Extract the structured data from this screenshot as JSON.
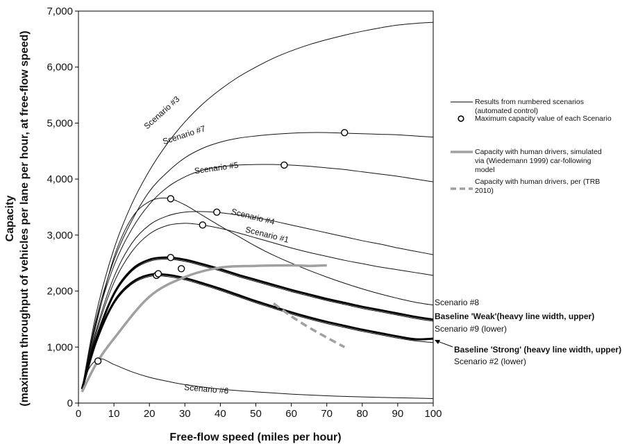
{
  "chart_data": {
    "type": "line",
    "xlabel": "Free-flow speed (miles per hour)",
    "ylabel_line1": "Capacity",
    "ylabel_line2": "(maximum throughput of vehicles per lane per hour, at free-flow speed)",
    "xlim": [
      0,
      100
    ],
    "ylim": [
      0,
      7000
    ],
    "x_ticks": [
      0,
      10,
      20,
      30,
      40,
      50,
      60,
      70,
      80,
      90,
      100
    ],
    "y_ticks": [
      0,
      1000,
      2000,
      3000,
      4000,
      5000,
      6000,
      7000
    ],
    "y_tick_labels": [
      "0",
      "1,000",
      "2,000",
      "3,000",
      "4,000",
      "5,000",
      "6,000",
      "7,000"
    ],
    "grid": false,
    "legend_position": "right",
    "series": [
      {
        "key": "s3",
        "style": "thin",
        "label": "Scenario #3",
        "label_x": 24,
        "label_y": 5150,
        "label_angle": -42,
        "x": [
          1,
          5,
          10,
          15,
          20,
          25,
          30,
          35,
          40,
          45,
          50,
          55,
          60,
          65,
          70,
          75,
          80,
          85,
          90,
          95,
          100
        ],
        "y": [
          250,
          1600,
          2750,
          3550,
          4150,
          4630,
          5020,
          5340,
          5600,
          5820,
          6000,
          6160,
          6290,
          6400,
          6490,
          6570,
          6640,
          6700,
          6750,
          6780,
          6800
        ]
      },
      {
        "key": "s7",
        "style": "thin",
        "label": "Scenario #7",
        "label_x": 30,
        "label_y": 4740,
        "label_angle": -18,
        "x": [
          1,
          5,
          10,
          15,
          20,
          25,
          30,
          35,
          40,
          45,
          50,
          55,
          60,
          65,
          70,
          75,
          80,
          85,
          90,
          95,
          100
        ],
        "y": [
          250,
          1500,
          2550,
          3250,
          3780,
          4120,
          4380,
          4550,
          4660,
          4730,
          4770,
          4800,
          4820,
          4830,
          4830,
          4820,
          4810,
          4800,
          4790,
          4770,
          4750
        ]
      },
      {
        "key": "s5",
        "style": "thin",
        "label": "Scenario #5",
        "label_x": 39,
        "label_y": 4150,
        "label_angle": -8,
        "x": [
          1,
          5,
          10,
          15,
          20,
          25,
          30,
          35,
          40,
          45,
          50,
          55,
          60,
          65,
          70,
          75,
          80,
          85,
          90,
          95,
          100
        ],
        "y": [
          250,
          1450,
          2450,
          3100,
          3550,
          3850,
          4040,
          4160,
          4220,
          4250,
          4260,
          4260,
          4250,
          4230,
          4200,
          4170,
          4130,
          4090,
          4050,
          4000,
          3950
        ]
      },
      {
        "key": "s4",
        "style": "thin",
        "label": "Scenario #4",
        "label_x": 49,
        "label_y": 3280,
        "label_angle": 14,
        "x": [
          1,
          5,
          10,
          15,
          20,
          25,
          30,
          35,
          40,
          45,
          50,
          55,
          60,
          65,
          70,
          75,
          80,
          85,
          90,
          95,
          100
        ],
        "y": [
          250,
          1300,
          2250,
          2850,
          3180,
          3340,
          3410,
          3420,
          3400,
          3360,
          3310,
          3250,
          3180,
          3110,
          3040,
          2970,
          2900,
          2840,
          2770,
          2710,
          2650
        ]
      },
      {
        "key": "s1",
        "style": "thin",
        "label": "Scenario #1",
        "label_x": 53,
        "label_y": 2960,
        "label_angle": 14,
        "x": [
          1,
          5,
          10,
          15,
          20,
          25,
          30,
          35,
          40,
          45,
          50,
          55,
          60,
          65,
          70,
          75,
          80,
          85,
          90,
          95,
          100
        ],
        "y": [
          250,
          1250,
          2150,
          2700,
          3020,
          3170,
          3210,
          3180,
          3120,
          3040,
          2950,
          2860,
          2770,
          2690,
          2620,
          2550,
          2490,
          2430,
          2380,
          2330,
          2280
        ]
      },
      {
        "key": "s8",
        "style": "thin",
        "label": "",
        "label_x": 0,
        "label_y": 0,
        "label_angle": 0,
        "x": [
          1,
          5,
          10,
          15,
          20,
          25,
          30,
          35,
          40,
          45,
          50,
          55,
          60,
          65,
          70,
          75,
          80,
          85,
          90,
          95,
          100
        ],
        "y": [
          250,
          1400,
          2600,
          3300,
          3600,
          3660,
          3540,
          3350,
          3160,
          2980,
          2800,
          2640,
          2500,
          2370,
          2250,
          2140,
          2040,
          1950,
          1870,
          1800,
          1750
        ]
      },
      {
        "key": "weak",
        "style": "heavy",
        "label": "",
        "label_x": 0,
        "label_y": 0,
        "label_angle": 0,
        "x": [
          1,
          5,
          10,
          15,
          20,
          25,
          30,
          35,
          40,
          45,
          50,
          55,
          60,
          65,
          70,
          75,
          80,
          85,
          90,
          95,
          100
        ],
        "y": [
          250,
          1150,
          1950,
          2380,
          2560,
          2600,
          2560,
          2480,
          2390,
          2290,
          2200,
          2110,
          2020,
          1940,
          1860,
          1790,
          1720,
          1660,
          1600,
          1540,
          1490
        ]
      },
      {
        "key": "s9",
        "style": "thin",
        "label": "",
        "label_x": 0,
        "label_y": 0,
        "label_angle": 0,
        "x": [
          1,
          5,
          10,
          15,
          20,
          25,
          30,
          35,
          40,
          45,
          50,
          55,
          60,
          65,
          70,
          75,
          80,
          85,
          90,
          95,
          100
        ],
        "y": [
          250,
          1130,
          1920,
          2350,
          2530,
          2570,
          2530,
          2450,
          2360,
          2260,
          2170,
          2080,
          1990,
          1910,
          1830,
          1760,
          1690,
          1630,
          1570,
          1510,
          1460
        ]
      },
      {
        "key": "strong",
        "style": "heavy",
        "label": "",
        "label_x": 0,
        "label_y": 0,
        "label_angle": 0,
        "x": [
          1,
          5,
          10,
          15,
          20,
          25,
          30,
          35,
          40,
          45,
          50,
          55,
          60,
          65,
          70,
          75,
          80,
          85,
          90,
          95,
          100
        ],
        "y": [
          250,
          1100,
          1800,
          2150,
          2290,
          2290,
          2230,
          2140,
          2040,
          1930,
          1820,
          1720,
          1620,
          1530,
          1450,
          1380,
          1310,
          1250,
          1190,
          1140,
          1150
        ]
      },
      {
        "key": "s2",
        "style": "thin",
        "label": "",
        "label_x": 0,
        "label_y": 0,
        "label_angle": 0,
        "x": [
          1,
          5,
          10,
          15,
          20,
          25,
          30,
          35,
          40,
          45,
          50,
          55,
          60,
          65,
          70,
          75,
          80,
          85,
          90,
          95,
          100
        ],
        "y": [
          250,
          1080,
          1770,
          2120,
          2260,
          2260,
          2200,
          2110,
          2010,
          1900,
          1790,
          1690,
          1590,
          1500,
          1420,
          1350,
          1280,
          1220,
          1160,
          1110,
          1080
        ]
      },
      {
        "key": "s6",
        "style": "thin",
        "label": "Scenario #6",
        "label_x": 36,
        "label_y": 200,
        "label_angle": 5,
        "x": [
          1,
          3,
          6,
          10,
          15,
          20,
          25,
          30,
          40,
          50,
          60,
          70,
          80,
          90,
          100
        ],
        "y": [
          250,
          620,
          790,
          690,
          560,
          460,
          390,
          330,
          250,
          200,
          160,
          130,
          110,
          95,
          80
        ]
      },
      {
        "key": "human_sim",
        "style": "gray",
        "label": "",
        "label_x": 0,
        "label_y": 0,
        "label_angle": 0,
        "x": [
          1,
          5,
          10,
          20,
          30,
          40,
          50,
          60,
          65,
          70
        ],
        "y": [
          200,
          700,
          1150,
          1900,
          2250,
          2420,
          2450,
          2460,
          2450,
          2460
        ]
      },
      {
        "key": "human_trb",
        "style": "gray-dash",
        "label": "",
        "label_x": 0,
        "label_y": 0,
        "label_angle": 0,
        "x": [
          55,
          60,
          65,
          70,
          75
        ],
        "y": [
          1780,
          1550,
          1350,
          1170,
          1000
        ]
      }
    ],
    "max_points": [
      {
        "x": 75,
        "y": 4830
      },
      {
        "x": 58,
        "y": 4250
      },
      {
        "x": 26,
        "y": 3650
      },
      {
        "x": 39,
        "y": 3410
      },
      {
        "x": 35,
        "y": 3180
      },
      {
        "x": 26,
        "y": 2600
      },
      {
        "x": 29,
        "y": 2400
      },
      {
        "x": 22,
        "y": 2280
      },
      {
        "x": 22.5,
        "y": 2310
      },
      {
        "x": 5.5,
        "y": 750
      }
    ],
    "side_labels": [
      {
        "key": "s8",
        "text": "Scenario #8",
        "bold": false,
        "y_value": 1800
      },
      {
        "key": "weak",
        "text": "Baseline 'Weak'(heavy line width, upper)",
        "bold": true,
        "y_value": 1550
      },
      {
        "key": "s9",
        "text": "Scenario #9 (lower)",
        "bold": false,
        "y_value": 1370
      },
      {
        "key": "strong",
        "text": "Baseline 'Strong' (heavy line width, upper)",
        "bold": true,
        "y_value": 0
      },
      {
        "key": "s2",
        "text": "Scenario #2 (lower)",
        "bold": false,
        "y_value": 0
      }
    ],
    "legend": [
      {
        "symbol": "thin-line",
        "lines": [
          "Results from numbered scenarios",
          "(automated control)"
        ]
      },
      {
        "symbol": "circle",
        "lines": [
          "Maximum capacity value of each Scenario"
        ]
      },
      {
        "symbol": "gray-line",
        "lines": [
          "Capacity with human drivers, simulated",
          "via (Wiedemann 1999) car-following",
          "model"
        ]
      },
      {
        "symbol": "gray-dash",
        "lines": [
          "Capacity with human drivers, per (TRB",
          "2010)"
        ]
      }
    ]
  }
}
